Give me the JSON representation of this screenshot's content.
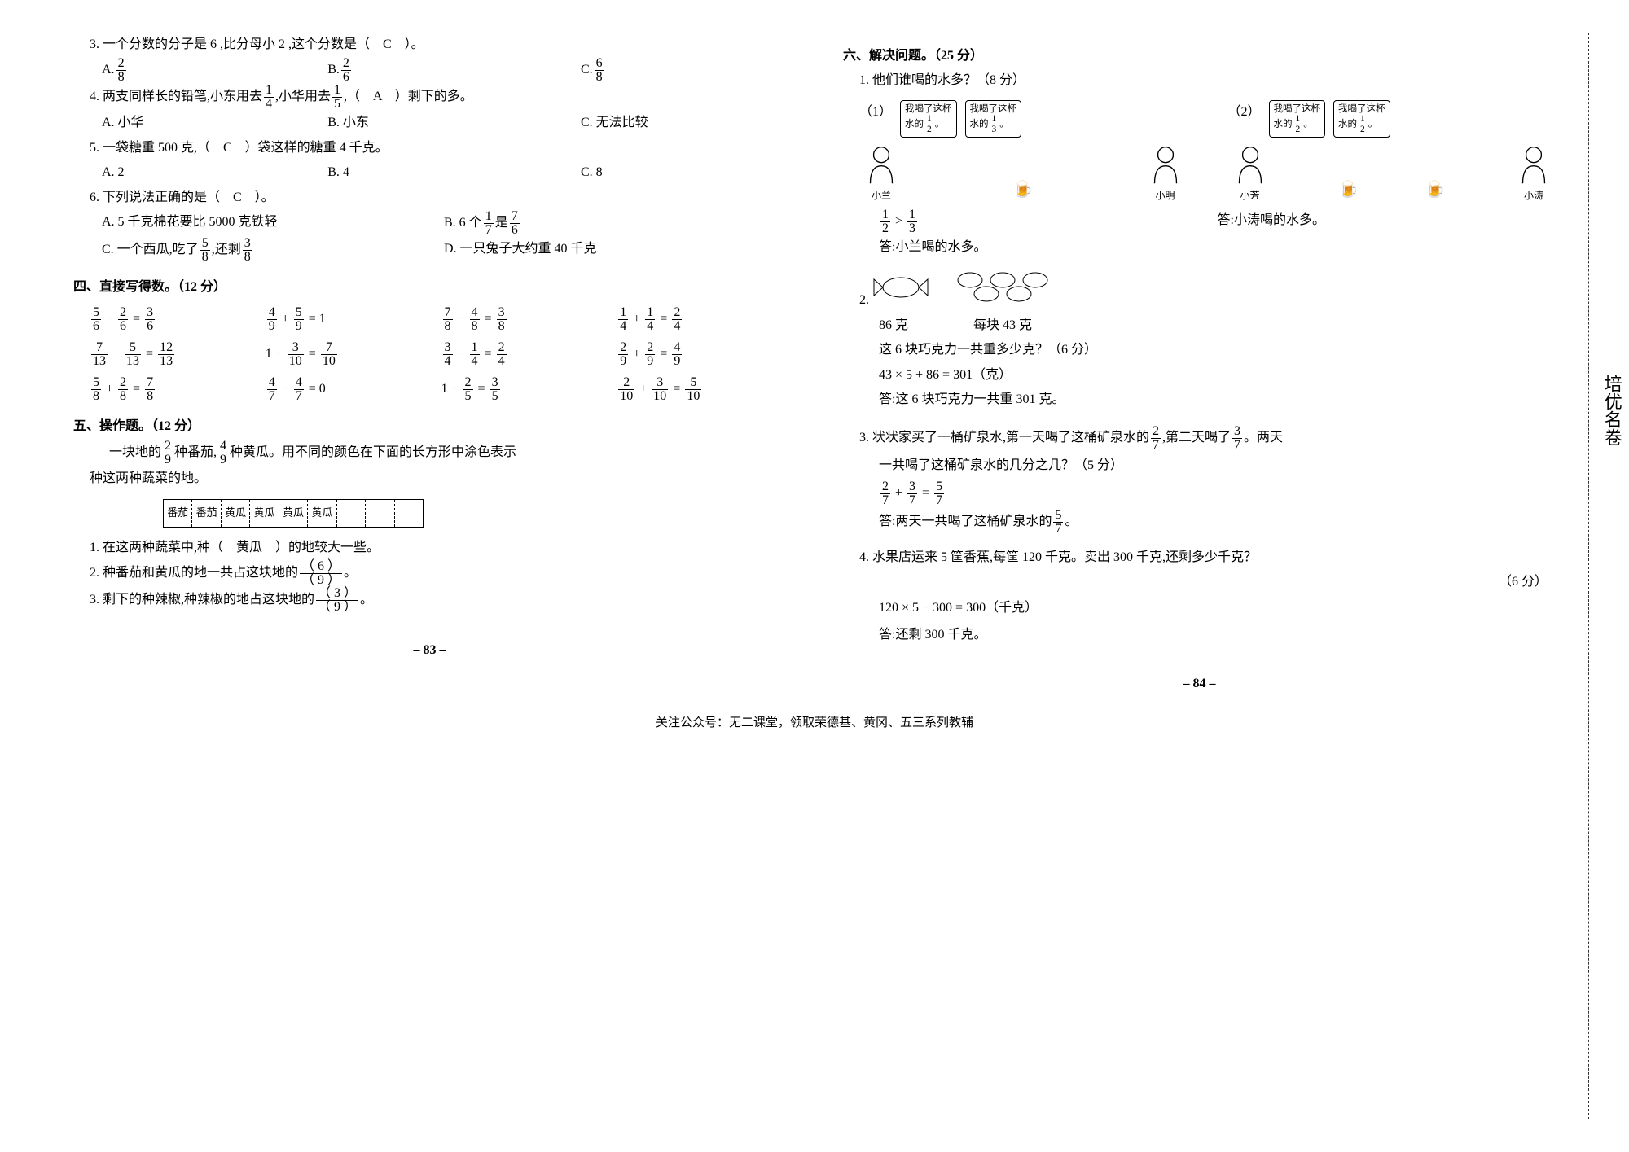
{
  "left": {
    "q3": {
      "text": "3. 一个分数的分子是 6 ,比分母小 2 ,这个分数是（　C　）。",
      "a": "A.",
      "af": [
        "2",
        "8"
      ],
      "b": "B.",
      "bf": [
        "2",
        "6"
      ],
      "c": "C.",
      "cf": [
        "6",
        "8"
      ]
    },
    "q4": {
      "t1": "4. 两支同样长的铅笔,小东用去",
      "f1": [
        "1",
        "4"
      ],
      "t2": ",小华用去",
      "f2": [
        "1",
        "5"
      ],
      "t3": ",（　A　）剩下的多。",
      "a": "A. 小华",
      "b": "B. 小东",
      "c": "C. 无法比较"
    },
    "q5": {
      "text": "5. 一袋糖重 500 克,（　C　）袋这样的糖重 4 千克。",
      "a": "A. 2",
      "b": "B. 4",
      "c": "C. 8"
    },
    "q6": {
      "text": "6. 下列说法正确的是（　C　）。",
      "a": "A. 5 千克棉花要比 5000 克铁轻",
      "b_pre": "B. 6 个",
      "b_f1": [
        "1",
        "7"
      ],
      "b_mid": "是",
      "b_f2": [
        "7",
        "6"
      ],
      "c_pre": "C. 一个西瓜,吃了",
      "c_f1": [
        "5",
        "8"
      ],
      "c_mid": ",还剩",
      "c_f2": [
        "3",
        "8"
      ],
      "d": "D. 一只兔子大约重 40 千克"
    },
    "s4": "四、直接写得数。（12 分）",
    "calc": [
      [
        "5/6 − 2/6 = 3/6",
        "4/9 + 5/9 = 1",
        "7/8 − 4/8 = 3/8",
        "1/4 + 1/4 = 2/4"
      ],
      [
        "7/13 + 5/13 = 12/13",
        "1 − 3/10 = 7/10",
        "3/4 − 1/4 = 2/4",
        "2/9 + 2/9 = 4/9"
      ],
      [
        "5/8 + 2/8 = 7/8",
        "4/7 − 4/7 = 0",
        "1 − 2/5 = 3/5",
        "2/10 + 3/10 = 5/10"
      ]
    ],
    "s5": "五、操作题。（12 分）",
    "s5_intro_1": "一块地的",
    "s5_f1": [
      "2",
      "9"
    ],
    "s5_intro_2": "种番茄,",
    "s5_f2": [
      "4",
      "9"
    ],
    "s5_intro_3": "种黄瓜。用不同的颜色在下面的长方形中涂色表示",
    "s5_intro_4": "种这两种蔬菜的地。",
    "veg": [
      "番茄",
      "番茄",
      "黄瓜",
      "黄瓜",
      "黄瓜",
      "黄瓜",
      "",
      "",
      ""
    ],
    "q5_1": "1. 在这两种蔬菜中,种（　黄瓜　）的地较大一些。",
    "q5_2a": "2. 种番茄和黄瓜的地一共占这块地的",
    "q5_2f": [
      "（ 6 ）",
      "（ 9 ）"
    ],
    "q5_2b": "。",
    "q5_3a": "3. 剩下的种辣椒,种辣椒的地占这块地的",
    "q5_3f": [
      "（ 3 ）",
      "（ 9 ）"
    ],
    "q5_3b": "。",
    "pgnum": "– 83 –"
  },
  "right": {
    "s6": "六、解决问题。（25 分）",
    "q1_title": "1. 他们谁喝的水多？（8 分）",
    "p1_num": "（1）",
    "p2_num": "（2）",
    "b1a": "我喝了这杯",
    "b1b": "水的",
    "b1f": [
      "1",
      "2"
    ],
    "b1c": "。",
    "b2a": "我喝了这杯",
    "b2b": "水的",
    "b2f": [
      "1",
      "3"
    ],
    "b2c": "。",
    "b3a": "我喝了这杯",
    "b3b": "水的",
    "b3f": [
      "1",
      "2"
    ],
    "b3c": "。",
    "b4a": "我喝了这杯",
    "b4b": "水的",
    "b4f": [
      "1",
      "2"
    ],
    "b4c": "。",
    "n1": "小兰",
    "n2": "小明",
    "n3": "小芳",
    "n4": "小涛",
    "q1_calc_f1": [
      "1",
      "2"
    ],
    "q1_gt": " > ",
    "q1_calc_f2": [
      "1",
      "3"
    ],
    "q1_ans2": "答:小涛喝的水多。",
    "q1_ans1": "答:小兰喝的水多。",
    "q2_num": "2.",
    "q2_w1": "86 克",
    "q2_w2": "每块 43 克",
    "q2_text": "这 6 块巧克力一共重多少克？（6 分）",
    "q2_calc": "43 × 5 + 86 = 301（克）",
    "q2_ans": "答:这 6 块巧克力一共重 301 克。",
    "q3_t1": "3. 状状家买了一桶矿泉水,第一天喝了这桶矿泉水的",
    "q3_f1": [
      "2",
      "7"
    ],
    "q3_t2": ",第二天喝了",
    "q3_f2": [
      "3",
      "7"
    ],
    "q3_t3": "。两天",
    "q3_t4": "一共喝了这桶矿泉水的几分之几？（5 分）",
    "q3_cf1": [
      "2",
      "7"
    ],
    "q3_plus": " + ",
    "q3_cf2": [
      "3",
      "7"
    ],
    "q3_eq": " = ",
    "q3_cf3": [
      "5",
      "7"
    ],
    "q3_ans1": "答:两天一共喝了这桶矿泉水的",
    "q3_ansf": [
      "5",
      "7"
    ],
    "q3_ans2": "。",
    "q4_text": "4. 水果店运来 5 筐香蕉,每筐 120 千克。卖出 300 千克,还剩多少千克？",
    "q4_pts": "（6 分）",
    "q4_calc": "120 × 5 − 300 = 300（千克）",
    "q4_ans": "答:还剩 300 千克。",
    "pgnum": "– 84 –"
  },
  "footer": "关注公众号：无二课堂，领取荣德基、黄冈、五三系列教辅",
  "side": "培优名卷"
}
